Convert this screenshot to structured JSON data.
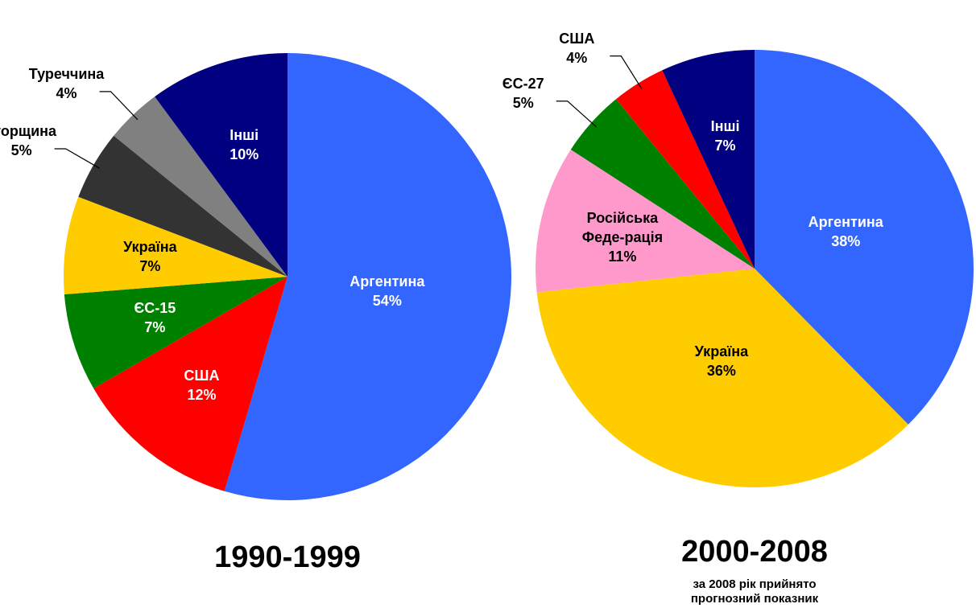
{
  "chart_data": [
    {
      "type": "pie",
      "title": "1990-1999",
      "categories": [
        "Аргентина",
        "США",
        "ЄС-15",
        "Україна",
        "Угорщина",
        "Туреччина",
        "Інші"
      ],
      "values": [
        54,
        12,
        7,
        7,
        5,
        4,
        10
      ],
      "value_labels": [
        "54%",
        "12%",
        "7%",
        "7%",
        "5%",
        "4%",
        "10%"
      ],
      "colors": [
        "#3366ff",
        "#ff0000",
        "#008000",
        "#ffcc00",
        "#333333",
        "#808080",
        "#000080"
      ]
    },
    {
      "type": "pie",
      "title": "2000-2008",
      "subtitle": "за 2008 рік прийнято прогнозний показник",
      "categories": [
        "Аргентина",
        "Україна",
        "Російська Феде-рація",
        "ЄС-27",
        "США",
        "Інші"
      ],
      "values": [
        38,
        36,
        11,
        5,
        4,
        7
      ],
      "value_labels": [
        "38%",
        "36%",
        "11%",
        "5%",
        "4%",
        "7%"
      ],
      "colors": [
        "#3366ff",
        "#ffcc00",
        "#ff99cc",
        "#008000",
        "#ff0000",
        "#000080"
      ]
    }
  ]
}
